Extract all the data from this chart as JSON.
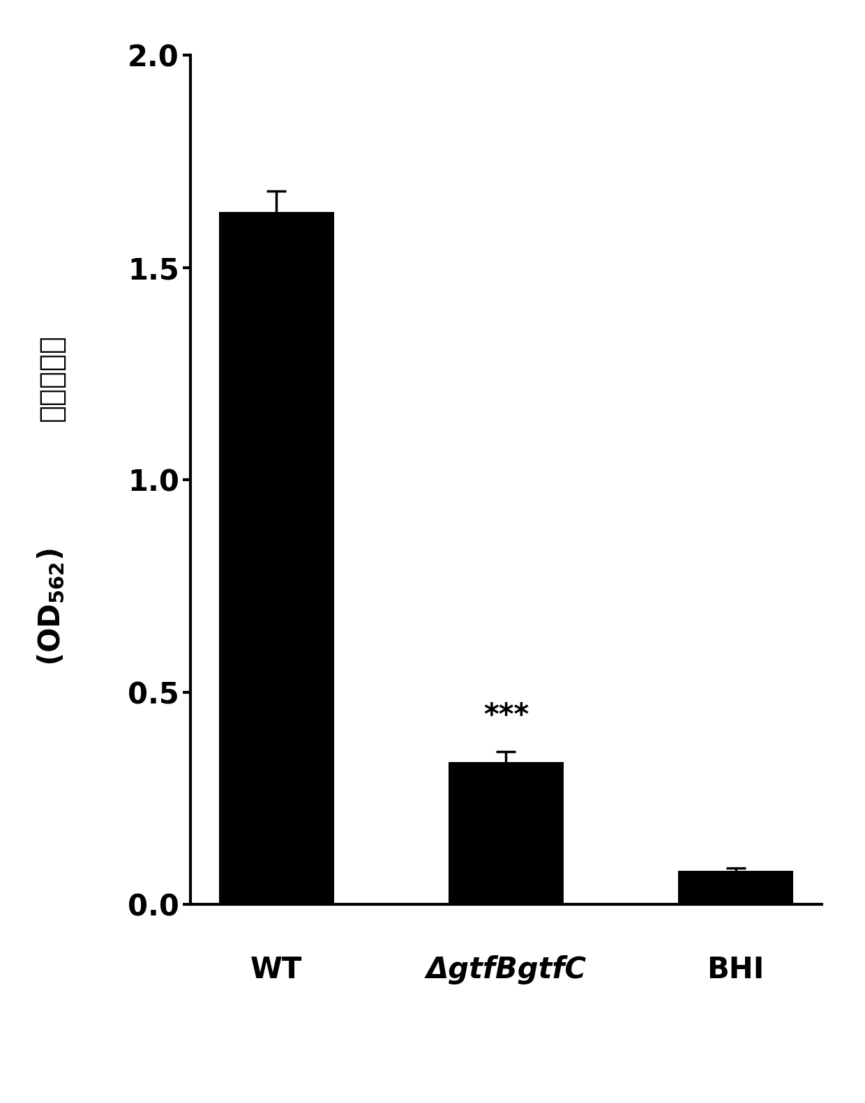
{
  "categories": [
    "WT",
    "ΔgtfBgtfC",
    "BHI"
  ],
  "values": [
    1.63,
    0.335,
    0.08
  ],
  "errors": [
    0.05,
    0.025,
    0.005
  ],
  "bar_color": "#000000",
  "bar_width": 0.5,
  "ylim": [
    0,
    2.0
  ],
  "yticks": [
    0.0,
    0.5,
    1.0,
    1.5,
    2.0
  ],
  "ylabel_chinese": "平均吸光度",
  "significance": [
    "",
    "***",
    ""
  ],
  "background_color": "#ffffff",
  "tick_fontsize": 30,
  "ylabel_fontsize": 30,
  "sig_fontsize": 30,
  "xlabel_italic": [
    false,
    true,
    false
  ],
  "linewidth": 3.0,
  "capsize": 10
}
